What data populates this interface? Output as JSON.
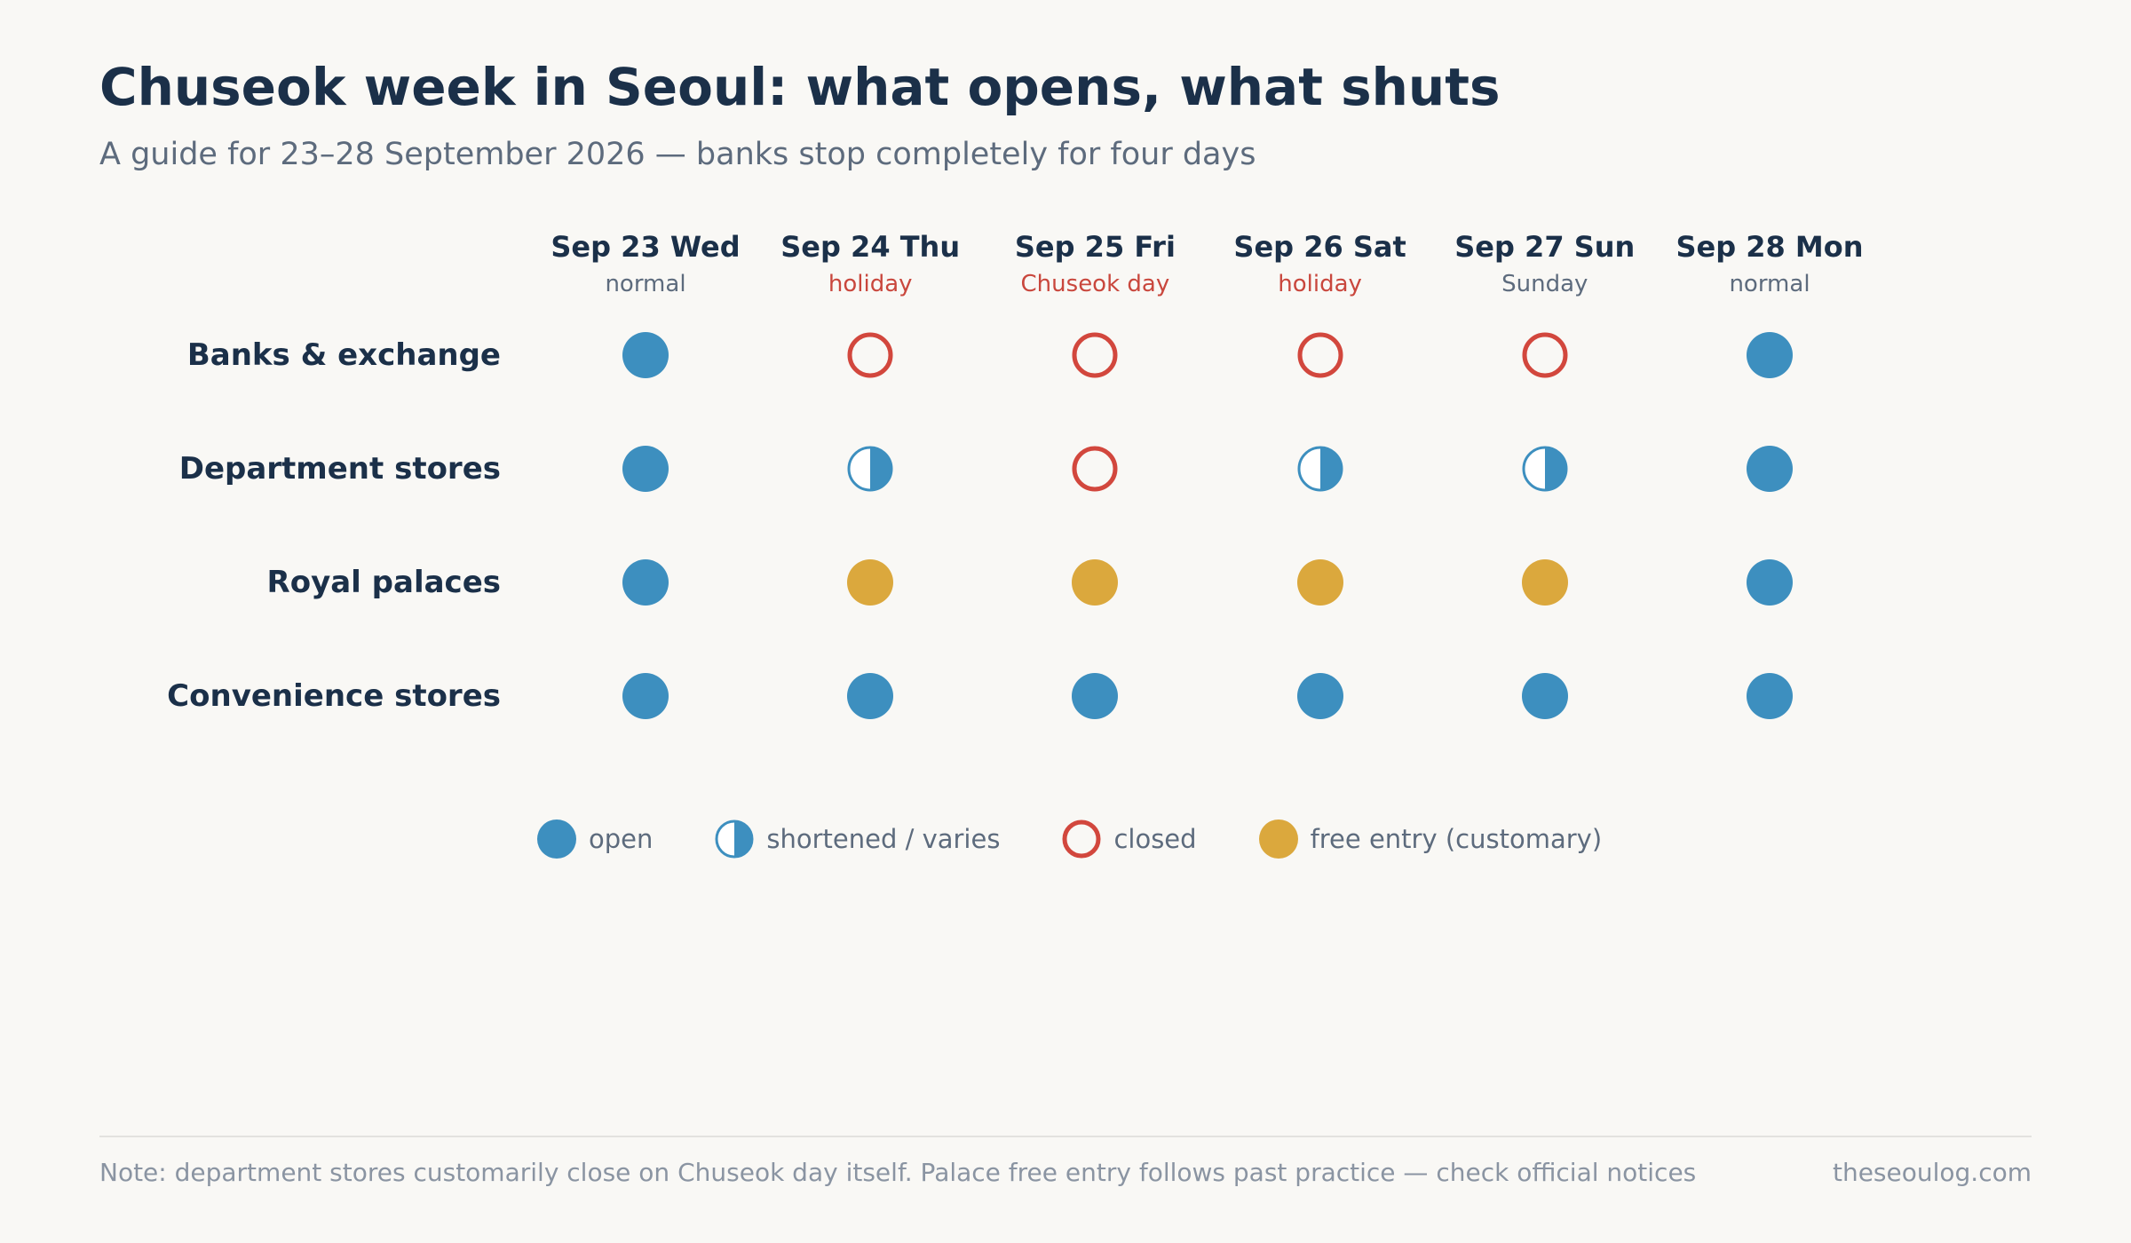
{
  "header": {
    "title": "Chuseok week in Seoul: what opens, what shuts",
    "subtitle": "A guide for 23–28 September 2026 — banks stop completely for four days"
  },
  "colors": {
    "open": "#3d8fbf",
    "closed": "#d2473d",
    "free": "#dba83d",
    "ink": "#1b3049",
    "muted": "#5d6b7d",
    "holiday_text": "#c9473d",
    "background": "#f9f8f5"
  },
  "chart_data": {
    "type": "table",
    "days": [
      {
        "label": "Sep 23 Wed",
        "status": "normal",
        "status_type": "normal"
      },
      {
        "label": "Sep 24 Thu",
        "status": "holiday",
        "status_type": "holiday"
      },
      {
        "label": "Sep 25 Fri",
        "status": "Chuseok day",
        "status_type": "holiday"
      },
      {
        "label": "Sep 26 Sat",
        "status": "holiday",
        "status_type": "holiday"
      },
      {
        "label": "Sep 27 Sun",
        "status": "Sunday",
        "status_type": "normal"
      },
      {
        "label": "Sep 28 Mon",
        "status": "normal",
        "status_type": "normal"
      }
    ],
    "rows": [
      {
        "label": "Banks & exchange",
        "values": [
          "open",
          "closed",
          "closed",
          "closed",
          "closed",
          "open"
        ]
      },
      {
        "label": "Department stores",
        "values": [
          "open",
          "shortened",
          "closed",
          "shortened",
          "shortened",
          "open"
        ]
      },
      {
        "label": "Royal palaces",
        "values": [
          "open",
          "free",
          "free",
          "free",
          "free",
          "open"
        ]
      },
      {
        "label": "Convenience stores",
        "values": [
          "open",
          "open",
          "open",
          "open",
          "open",
          "open"
        ]
      }
    ],
    "legend": [
      {
        "key": "open",
        "label": "open"
      },
      {
        "key": "shortened",
        "label": "shortened / varies"
      },
      {
        "key": "closed",
        "label": "closed"
      },
      {
        "key": "free",
        "label": "free entry (customary)"
      }
    ]
  },
  "footer": {
    "note": "Note: department stores customarily close on Chuseok day itself. Palace free entry follows past practice — check official notices",
    "credit": "theseoulog.com"
  }
}
